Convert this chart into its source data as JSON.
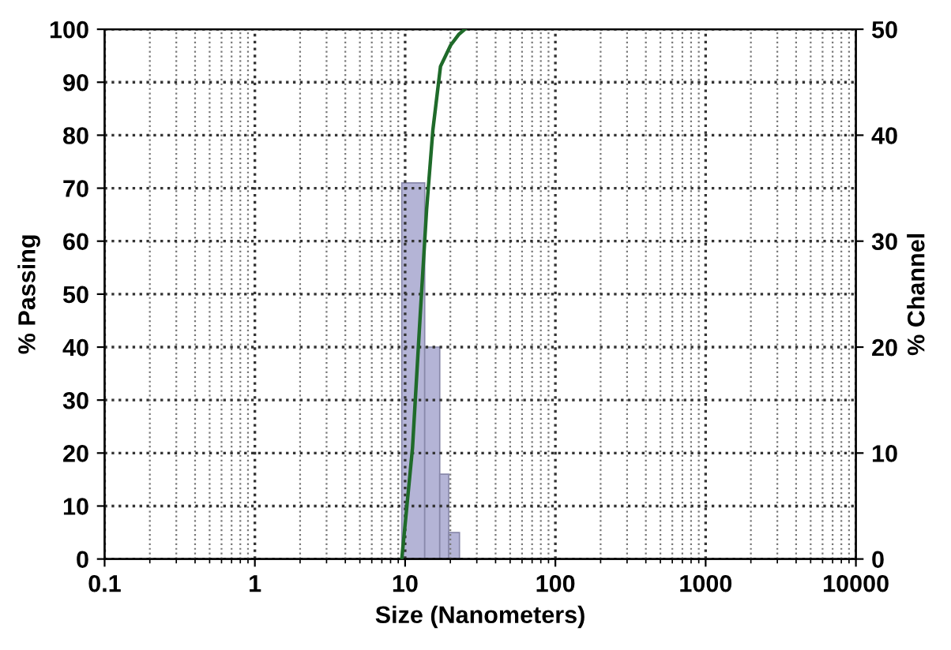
{
  "chart_data": {
    "type": "histogram",
    "xlabel": "Size (Nanometers)",
    "ylabel": "% Passing",
    "y2label": "% Channel",
    "log": "x",
    "grid": true,
    "line_style": "solid",
    "xlim": [
      0.1,
      10000
    ],
    "xticks": [
      0.1,
      1,
      10,
      100,
      1000,
      10000
    ],
    "ylim": [
      0,
      100
    ],
    "yticks": [
      0,
      10,
      20,
      30,
      40,
      50,
      60,
      70,
      80,
      90,
      100
    ],
    "y2lim": [
      0,
      50
    ],
    "y2ticks": [
      0,
      10,
      20,
      30,
      40,
      50
    ],
    "series": [
      {
        "axis": "y2",
        "color": "#b4b4d6",
        "bins": [
          9.5,
          13.5,
          17,
          19.5,
          23
        ],
        "values": [
          35.5,
          20,
          8,
          2.5
        ]
      },
      {
        "type": "line",
        "axis": "y",
        "color": "#1f6b2a",
        "x": [
          9.5,
          11.2,
          12.6,
          13.9,
          15.3,
          17.2,
          20.1,
          22.7,
          25
        ],
        "values": [
          0,
          21,
          46,
          66,
          81,
          93,
          97,
          99,
          100
        ]
      }
    ]
  }
}
